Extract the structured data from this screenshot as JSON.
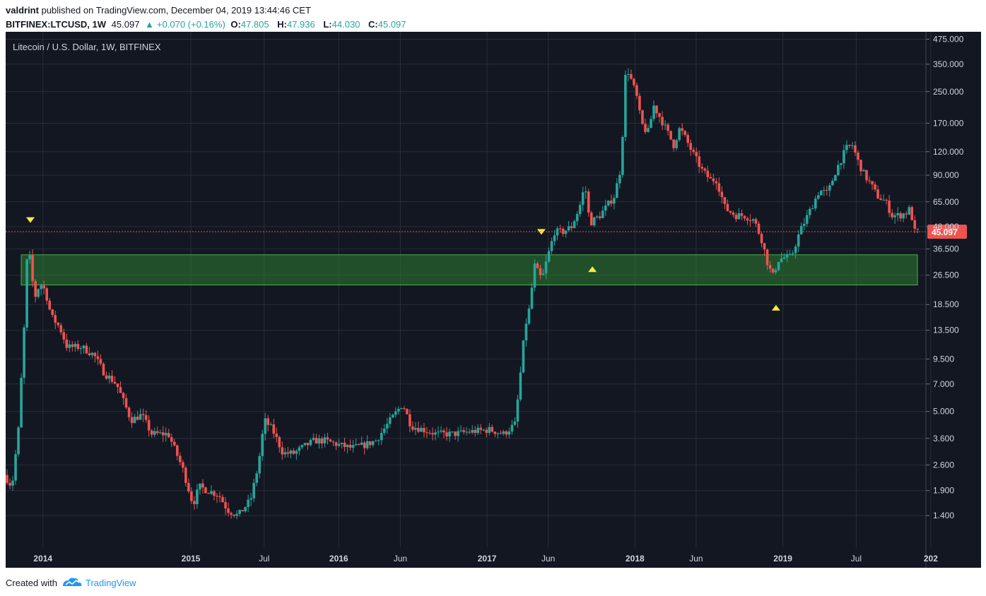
{
  "header": {
    "user": "valdrint",
    "published_text": "published on TradingView.com, December 04, 2019 13:44:46 CET",
    "symbol": "BITFINEX:LTCUSD, 1W",
    "last": "45.097",
    "change": "+0.070 (+0.16%)",
    "ohlc": {
      "o_label": "O:",
      "o": "47.805",
      "h_label": "H:",
      "h": "47.936",
      "l_label": "L:",
      "l": "44.030",
      "c_label": "C:",
      "c": "45.097"
    }
  },
  "chart_title": "Litecoin / U.S. Dollar, 1W, BITFINEX",
  "footer": {
    "created_with": "Created with",
    "brand": "TradingView"
  },
  "colors": {
    "background": "#131722",
    "up": "#26a69a",
    "down": "#ef5350",
    "zone": "#1b5e20",
    "marker": "#ffeb3b",
    "price_line": "#ef5350"
  },
  "chart_data": {
    "type": "candlestick",
    "title": "Litecoin / U.S. Dollar, 1W, BITFINEX",
    "y_scale": "log",
    "ylim": [
      0.95,
      520
    ],
    "y_ticks": [
      "475.000",
      "350.000",
      "250.000",
      "170.000",
      "120.000",
      "90.000",
      "65.000",
      "48.000",
      "36.500",
      "26.500",
      "18.500",
      "13.500",
      "9.500",
      "7.000",
      "5.000",
      "3.600",
      "2.600",
      "1.900",
      "1.400"
    ],
    "y_tick_values": [
      475,
      350,
      250,
      170,
      120,
      90,
      65,
      48,
      36.5,
      26.5,
      18.5,
      13.5,
      9.5,
      7,
      5,
      3.6,
      2.6,
      1.9,
      1.4
    ],
    "x_range": [
      "2013-10-01",
      "2019-12-20"
    ],
    "x_ticks": [
      {
        "label": "2014",
        "date": "2014-01-01",
        "bold": true
      },
      {
        "label": "2015",
        "date": "2015-01-01",
        "bold": true
      },
      {
        "label": "Jul",
        "date": "2015-07-01",
        "bold": false
      },
      {
        "label": "2016",
        "date": "2016-01-01",
        "bold": true
      },
      {
        "label": "Jun",
        "date": "2016-06-01",
        "bold": false
      },
      {
        "label": "2017",
        "date": "2017-01-01",
        "bold": true
      },
      {
        "label": "Jun",
        "date": "2017-06-01",
        "bold": false
      },
      {
        "label": "2018",
        "date": "2018-01-01",
        "bold": true
      },
      {
        "label": "Jun",
        "date": "2018-06-01",
        "bold": false
      },
      {
        "label": "2019",
        "date": "2019-01-01",
        "bold": true
      },
      {
        "label": "Jul",
        "date": "2019-07-01",
        "bold": false
      },
      {
        "label": "202",
        "date": "2020-01-01",
        "bold": true
      }
    ],
    "price_path": [
      [
        "2013-10-01",
        2.3
      ],
      [
        "2013-10-20",
        2.0
      ],
      [
        "2013-11-05",
        4.0
      ],
      [
        "2013-11-20",
        15
      ],
      [
        "2013-11-28",
        40
      ],
      [
        "2013-12-05",
        30
      ],
      [
        "2013-12-15",
        20
      ],
      [
        "2013-12-28",
        24
      ],
      [
        "2014-01-10",
        22
      ],
      [
        "2014-01-25",
        16
      ],
      [
        "2014-02-15",
        14
      ],
      [
        "2014-03-05",
        11
      ],
      [
        "2014-04-10",
        11
      ],
      [
        "2014-05-10",
        10
      ],
      [
        "2014-06-05",
        8
      ],
      [
        "2014-07-05",
        7
      ],
      [
        "2014-08-10",
        4.5
      ],
      [
        "2014-09-05",
        4.8
      ],
      [
        "2014-09-30",
        3.8
      ],
      [
        "2014-11-10",
        3.8
      ],
      [
        "2014-12-15",
        2.5
      ],
      [
        "2015-01-10",
        1.6
      ],
      [
        "2015-01-25",
        2.0
      ],
      [
        "2015-02-15",
        1.9
      ],
      [
        "2015-03-15",
        1.8
      ],
      [
        "2015-04-05",
        1.5
      ],
      [
        "2015-05-01",
        1.4
      ],
      [
        "2015-06-01",
        1.7
      ],
      [
        "2015-06-20",
        2.6
      ],
      [
        "2015-07-05",
        4.5
      ],
      [
        "2015-07-25",
        4.0
      ],
      [
        "2015-08-20",
        3.0
      ],
      [
        "2015-09-15",
        3.0
      ],
      [
        "2015-10-15",
        3.3
      ],
      [
        "2015-11-05",
        3.5
      ],
      [
        "2015-12-01",
        3.5
      ],
      [
        "2016-01-10",
        3.3
      ],
      [
        "2016-02-05",
        3.2
      ],
      [
        "2016-03-05",
        3.3
      ],
      [
        "2016-04-05",
        3.5
      ],
      [
        "2016-05-01",
        4.2
      ],
      [
        "2016-06-10",
        5.5
      ],
      [
        "2016-07-01",
        4.2
      ],
      [
        "2016-08-01",
        4.0
      ],
      [
        "2016-09-01",
        3.8
      ],
      [
        "2016-10-15",
        3.8
      ],
      [
        "2016-11-20",
        3.9
      ],
      [
        "2017-01-10",
        4.0
      ],
      [
        "2017-02-15",
        3.8
      ],
      [
        "2017-03-15",
        4.3
      ],
      [
        "2017-03-28",
        8.0
      ],
      [
        "2017-04-08",
        14
      ],
      [
        "2017-04-20",
        18
      ],
      [
        "2017-05-01",
        30
      ],
      [
        "2017-05-08",
        28
      ],
      [
        "2017-05-20",
        25
      ],
      [
        "2017-06-01",
        32
      ],
      [
        "2017-06-20",
        45
      ],
      [
        "2017-07-10",
        45
      ],
      [
        "2017-08-01",
        48
      ],
      [
        "2017-08-20",
        60
      ],
      [
        "2017-09-03",
        80
      ],
      [
        "2017-09-15",
        50
      ],
      [
        "2017-10-10",
        55
      ],
      [
        "2017-11-15",
        70
      ],
      [
        "2017-12-01",
        100
      ],
      [
        "2017-12-12",
        300
      ],
      [
        "2017-12-19",
        320
      ],
      [
        "2018-01-08",
        240
      ],
      [
        "2018-01-20",
        170
      ],
      [
        "2018-02-05",
        150
      ],
      [
        "2018-02-20",
        210
      ],
      [
        "2018-03-15",
        170
      ],
      [
        "2018-04-10",
        130
      ],
      [
        "2018-04-25",
        160
      ],
      [
        "2018-05-10",
        140
      ],
      [
        "2018-05-25",
        120
      ],
      [
        "2018-06-20",
        95
      ],
      [
        "2018-07-10",
        85
      ],
      [
        "2018-07-25",
        85
      ],
      [
        "2018-08-15",
        60
      ],
      [
        "2018-09-10",
        55
      ],
      [
        "2018-10-01",
        55
      ],
      [
        "2018-10-25",
        52
      ],
      [
        "2018-11-15",
        40
      ],
      [
        "2018-11-25",
        32
      ],
      [
        "2018-12-10",
        26
      ],
      [
        "2018-12-25",
        32
      ],
      [
        "2019-01-10",
        33
      ],
      [
        "2019-01-25",
        33
      ],
      [
        "2019-02-15",
        45
      ],
      [
        "2019-03-10",
        57
      ],
      [
        "2019-04-05",
        75
      ],
      [
        "2019-04-25",
        72
      ],
      [
        "2019-05-15",
        95
      ],
      [
        "2019-06-10",
        125
      ],
      [
        "2019-06-25",
        130
      ],
      [
        "2019-07-10",
        105
      ],
      [
        "2019-07-25",
        90
      ],
      [
        "2019-08-10",
        80
      ],
      [
        "2019-08-25",
        70
      ],
      [
        "2019-09-15",
        65
      ],
      [
        "2019-10-01",
        55
      ],
      [
        "2019-10-20",
        55
      ],
      [
        "2019-11-05",
        57
      ],
      [
        "2019-11-15",
        60
      ],
      [
        "2019-11-25",
        45
      ],
      [
        "2019-12-02",
        45.097
      ]
    ],
    "support_zone": {
      "low": 23.5,
      "high": 34.0
    },
    "current_price": 45.097,
    "current_price_label": "45.097",
    "markers": [
      {
        "type": "down",
        "date": "2013-12-01",
        "price": 52
      },
      {
        "type": "down",
        "date": "2017-05-15",
        "price": 45
      },
      {
        "type": "up",
        "date": "2017-09-18",
        "price": 28.5
      },
      {
        "type": "up",
        "date": "2018-12-15",
        "price": 17.8
      }
    ]
  }
}
